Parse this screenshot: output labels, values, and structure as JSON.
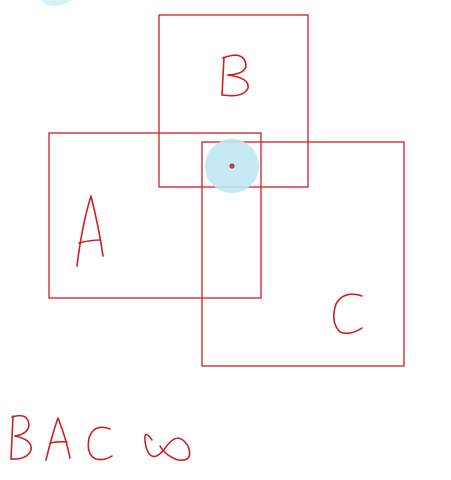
{
  "colors": {
    "ink": "#cc1f2a",
    "background": "#ffffff",
    "cursor_halo": "#bfe8f3",
    "cursor_dot": "#c23a4a"
  },
  "diagram": {
    "boxes": [
      {
        "id": "A",
        "label": "A"
      },
      {
        "id": "B",
        "label": "B"
      },
      {
        "id": "C",
        "label": "C"
      }
    ],
    "annotation": "B A C ∞",
    "tokens": [
      "B",
      "A",
      "C",
      "∞"
    ]
  },
  "pointer": {
    "icon": "cursor-highlight-icon"
  }
}
